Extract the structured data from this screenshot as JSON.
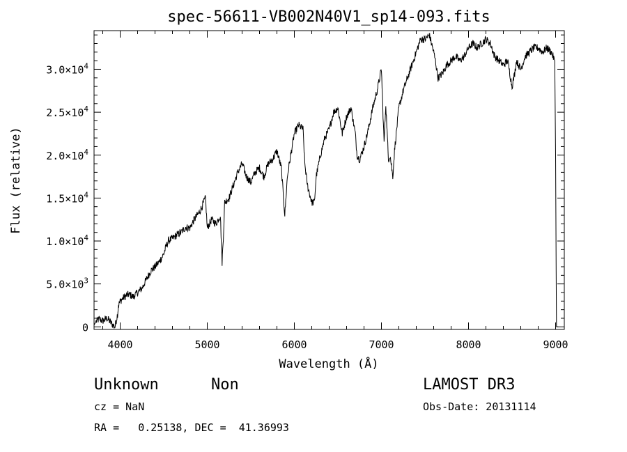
{
  "chart_data": {
    "type": "line",
    "title": "spec-56611-VB002N40V1_sp14-093.fits",
    "xlabel": "Wavelength (Å)",
    "ylabel": "Flux (relative)",
    "xlim": [
      3700,
      9100
    ],
    "ylim": [
      -300,
      34500
    ],
    "x_ticks": [
      4000,
      5000,
      6000,
      7000,
      8000,
      9000
    ],
    "x_tick_labels": [
      "4000",
      "5000",
      "6000",
      "7000",
      "8000",
      "9000"
    ],
    "y_ticks": [
      0,
      5000,
      10000,
      15000,
      20000,
      25000,
      30000
    ],
    "y_tick_labels": [
      {
        "mantissa": "0",
        "exponent": ""
      },
      {
        "mantissa": "5.0×10",
        "exponent": "3"
      },
      {
        "mantissa": "1.0×10",
        "exponent": "4"
      },
      {
        "mantissa": "1.5×10",
        "exponent": "4"
      },
      {
        "mantissa": "2.0×10",
        "exponent": "4"
      },
      {
        "mantissa": "2.5×10",
        "exponent": "4"
      },
      {
        "mantissa": "3.0×10",
        "exponent": "4"
      }
    ],
    "series": [
      {
        "name": "flux",
        "x": [
          3700,
          3720,
          3760,
          3800,
          3850,
          3900,
          3940,
          3970,
          3980,
          4000,
          4050,
          4100,
          4150,
          4200,
          4250,
          4300,
          4350,
          4400,
          4450,
          4500,
          4550,
          4600,
          4650,
          4700,
          4750,
          4800,
          4850,
          4900,
          4940,
          4980,
          5000,
          5050,
          5100,
          5150,
          5170,
          5185,
          5200,
          5250,
          5300,
          5350,
          5400,
          5450,
          5500,
          5550,
          5600,
          5650,
          5700,
          5750,
          5800,
          5850,
          5890,
          5920,
          5950,
          6000,
          6050,
          6100,
          6120,
          6150,
          6200,
          6230,
          6250,
          6300,
          6350,
          6400,
          6450,
          6500,
          6550,
          6600,
          6650,
          6700,
          6720,
          6750,
          6800,
          6850,
          6900,
          6950,
          7000,
          7030,
          7050,
          7080,
          7100,
          7130,
          7150,
          7200,
          7250,
          7300,
          7350,
          7400,
          7450,
          7500,
          7550,
          7600,
          7620,
          7650,
          7700,
          7750,
          7800,
          7850,
          7900,
          7950,
          8000,
          8050,
          8100,
          8150,
          8200,
          8250,
          8300,
          8350,
          8400,
          8450,
          8500,
          8530,
          8550,
          8600,
          8650,
          8700,
          8750,
          8800,
          8850,
          8900,
          8950,
          8990,
          9000,
          9010,
          9030
        ],
        "y": [
          200,
          600,
          900,
          700,
          1000,
          400,
          0,
          1500,
          2500,
          3000,
          3500,
          3800,
          3500,
          4000,
          4500,
          5500,
          6500,
          7000,
          7600,
          8500,
          10000,
          10300,
          10700,
          11000,
          11600,
          11500,
          12500,
          13200,
          14000,
          15000,
          11500,
          12500,
          12000,
          13000,
          7500,
          10500,
          14500,
          15000,
          16500,
          18000,
          19000,
          17500,
          16800,
          18000,
          18500,
          17500,
          19000,
          19500,
          20500,
          18500,
          13000,
          17500,
          19500,
          22500,
          23500,
          23000,
          19000,
          16500,
          14500,
          14500,
          17500,
          20000,
          22000,
          23000,
          25000,
          25500,
          22500,
          24500,
          25500,
          22500,
          20000,
          19500,
          21000,
          23000,
          25500,
          27500,
          30000,
          21500,
          26000,
          19500,
          20000,
          17500,
          20500,
          25500,
          27500,
          29000,
          30500,
          32000,
          33500,
          33500,
          34000,
          32000,
          31000,
          29000,
          29500,
          30500,
          31000,
          31500,
          31000,
          31500,
          32500,
          33000,
          32500,
          33000,
          33500,
          33000,
          31500,
          31000,
          30500,
          31000,
          28000,
          29500,
          31000,
          30000,
          31500,
          32000,
          32500,
          32500,
          32000,
          32500,
          32000,
          31000,
          20000,
          0,
          0
        ]
      }
    ]
  },
  "footer": {
    "object_class": "Unknown",
    "subclass": "Non",
    "survey": "LAMOST DR3",
    "cz": "cz = NaN",
    "obs_date": "Obs-Date: 20131114",
    "coords": "RA =   0.25138, DEC =  41.36993"
  }
}
